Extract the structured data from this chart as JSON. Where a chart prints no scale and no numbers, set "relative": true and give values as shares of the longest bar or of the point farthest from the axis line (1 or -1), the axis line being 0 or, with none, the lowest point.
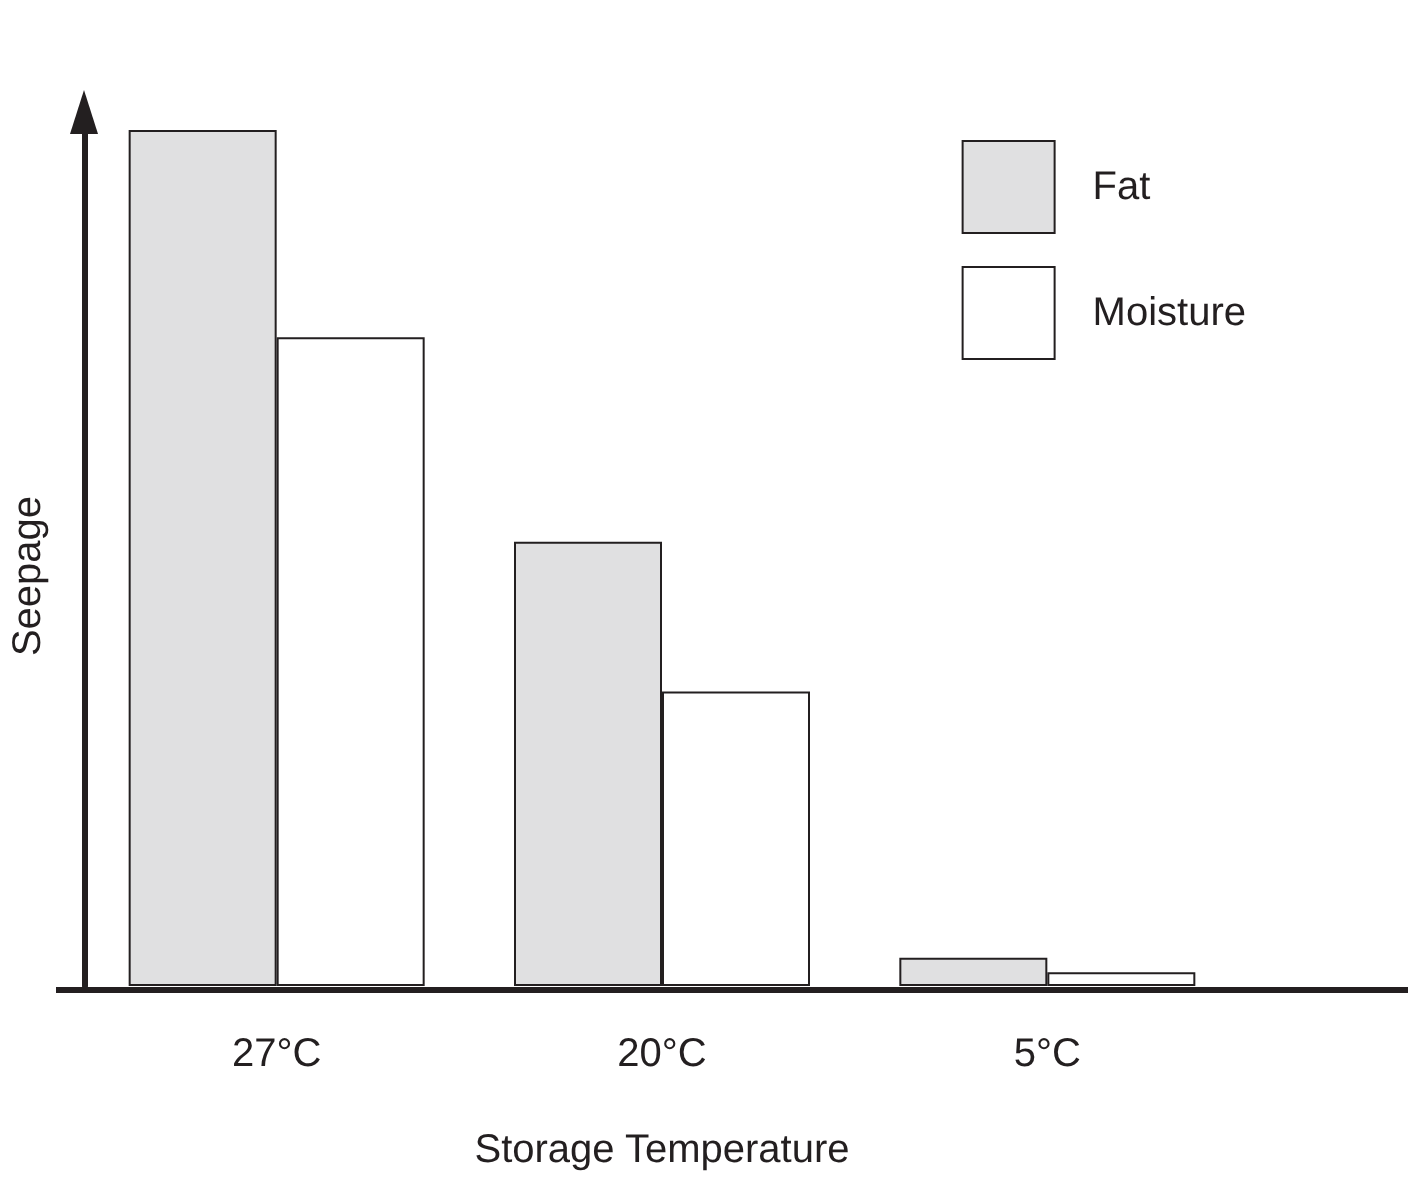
{
  "chart_data": {
    "type": "bar",
    "relative": true,
    "xlabel": "Storage Temperature",
    "ylabel": "Seepage",
    "categories": [
      "27°C",
      "20°C",
      "5°C"
    ],
    "series": [
      {
        "name": "Fat",
        "color": "#e0e0e1",
        "values": [
          1,
          0.519,
          0.033
        ]
      },
      {
        "name": "Moisture",
        "color": "#ffffff",
        "values": [
          0.758,
          0.344,
          0.016
        ]
      }
    ],
    "legend": "top right"
  }
}
